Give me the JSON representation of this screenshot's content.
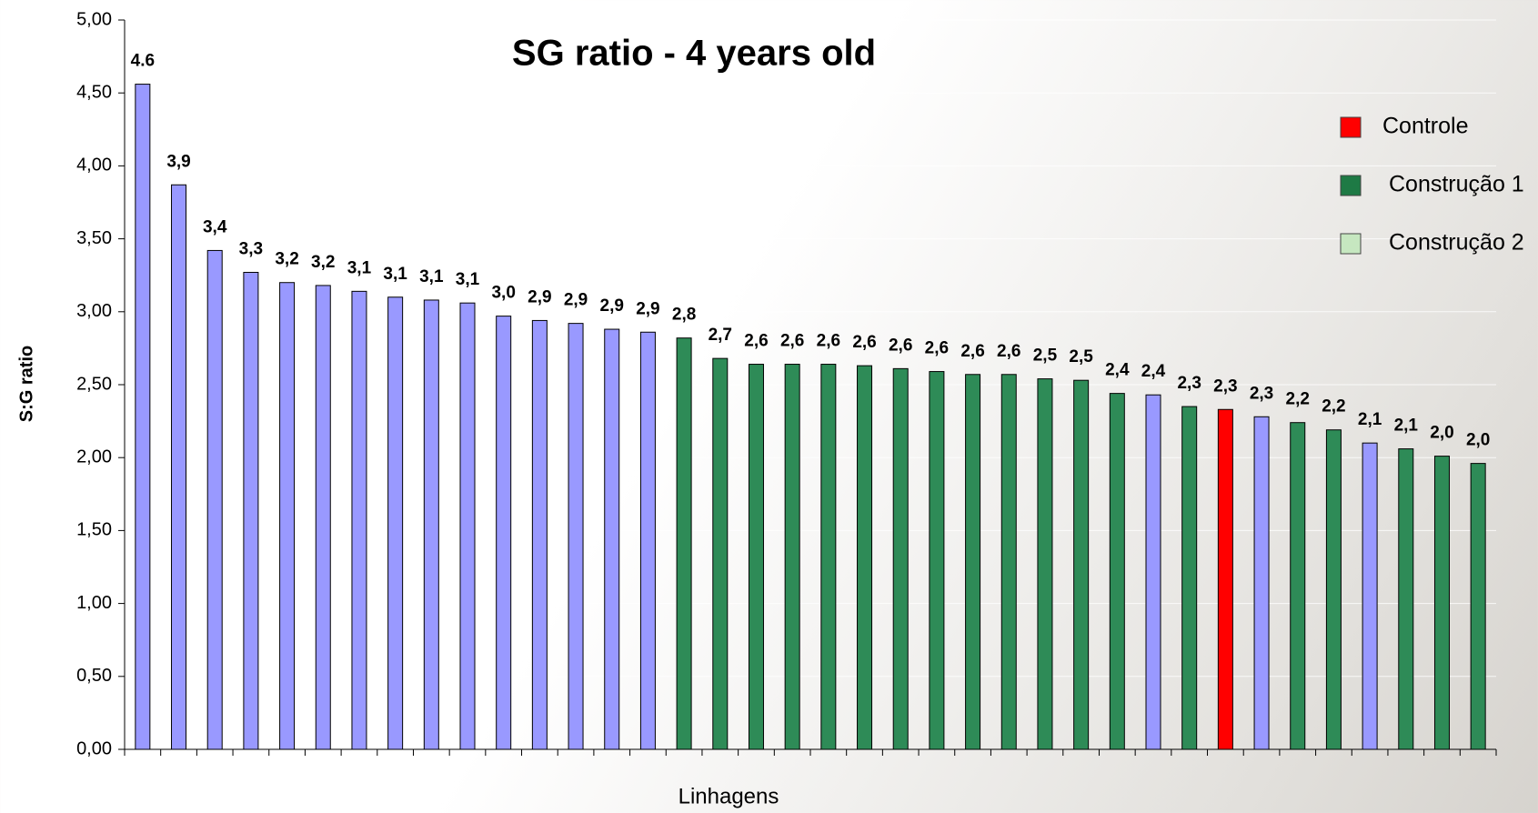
{
  "chart_data": {
    "type": "bar",
    "title": "SG ratio - 4 years old",
    "y_label": "S:G ratio",
    "x_label": "Linhagens",
    "values": [
      4.56,
      3.87,
      3.42,
      3.27,
      3.2,
      3.18,
      3.14,
      3.1,
      3.08,
      3.06,
      2.97,
      2.94,
      2.92,
      2.88,
      2.86,
      2.82,
      2.68,
      2.64,
      2.64,
      2.64,
      2.63,
      2.61,
      2.59,
      2.57,
      2.57,
      2.54,
      2.53,
      2.44,
      2.43,
      2.35,
      2.33,
      2.28,
      2.24,
      2.19,
      2.1,
      2.06,
      2.01,
      1.96
    ],
    "value_labels": [
      "4.6",
      "3,9",
      "3,4",
      "3,3",
      "3,2",
      "3,2",
      "3,1",
      "3,1",
      "3,1",
      "3,1",
      "3,0",
      "2,9",
      "2,9",
      "2,9",
      "2,9",
      "2,8",
      "2,7",
      "2,6",
      "2,6",
      "2,6",
      "2,6",
      "2,6",
      "2,6",
      "2,6",
      "2,6",
      "2,5",
      "2,5",
      "2,4",
      "2,4",
      "2,3",
      "2,3",
      "2,3",
      "2,2",
      "2,2",
      "2,1",
      "2,1",
      "2,0",
      "2,0"
    ],
    "colors": [
      "#9999ff",
      "#9999ff",
      "#9999ff",
      "#9999ff",
      "#9999ff",
      "#9999ff",
      "#9999ff",
      "#9999ff",
      "#9999ff",
      "#9999ff",
      "#9999ff",
      "#9999ff",
      "#9999ff",
      "#9999ff",
      "#9999ff",
      "#2e8b57",
      "#2e8b57",
      "#2e8b57",
      "#2e8b57",
      "#2e8b57",
      "#2e8b57",
      "#2e8b57",
      "#2e8b57",
      "#2e8b57",
      "#2e8b57",
      "#2e8b57",
      "#2e8b57",
      "#2e8b57",
      "#9999ff",
      "#2e8b57",
      "#ff0000",
      "#9999ff",
      "#2e8b57",
      "#2e8b57",
      "#9999ff",
      "#2e8b57",
      "#2e8b57",
      "#2e8b57"
    ],
    "legend": [
      {
        "name": "Controle",
        "color": "#ff0000"
      },
      {
        "name": "Construção 1",
        "color": "#1e7a45"
      },
      {
        "name": "Construção 2",
        "color": "#c6e7c0"
      }
    ],
    "ylim": [
      0,
      5
    ],
    "yticks": [
      {
        "value": 0,
        "label": "0,00"
      },
      {
        "value": 0.5,
        "label": "0,50"
      },
      {
        "value": 1,
        "label": "1,00"
      },
      {
        "value": 1.5,
        "label": "1,50"
      },
      {
        "value": 2,
        "label": "2,00"
      },
      {
        "value": 2.5,
        "label": "2,50"
      },
      {
        "value": 3,
        "label": "3,00"
      },
      {
        "value": 3.5,
        "label": "3,50"
      },
      {
        "value": 4,
        "label": "4,00"
      },
      {
        "value": 4.5,
        "label": "4,50"
      },
      {
        "value": 5,
        "label": "5,00"
      }
    ],
    "grid": true
  }
}
